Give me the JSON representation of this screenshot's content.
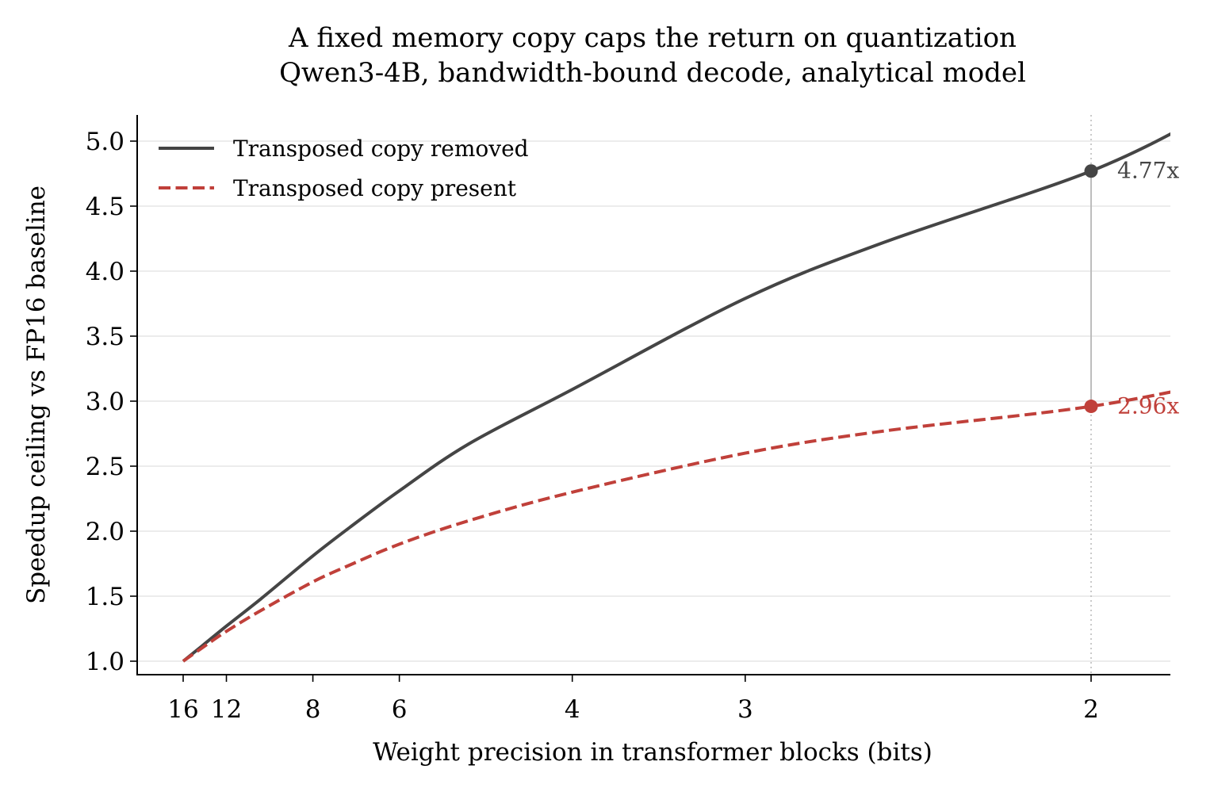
{
  "chart_data": {
    "type": "line",
    "title": "A fixed memory copy caps the return on quantization",
    "subtitle": "Qwen3-4B, bandwidth-bound decode, analytical model",
    "xlabel": "Weight precision in transformer blocks (bits)",
    "ylabel": "Speedup ceiling vs FP16 baseline",
    "x_scale": "reciprocal",
    "x_ticks": [
      16,
      12,
      8,
      6,
      4,
      3,
      2
    ],
    "y_ticks": [
      1.0,
      1.5,
      2.0,
      2.5,
      3.0,
      3.5,
      4.0,
      4.5,
      5.0
    ],
    "y_tick_labels": [
      "1.0",
      "1.5",
      "2.0",
      "2.5",
      "3.0",
      "3.5",
      "4.0",
      "4.5",
      "5.0"
    ],
    "ylim": [
      0.95,
      5.2
    ],
    "grid": "horizontal",
    "legend_position": "top-left",
    "reference_line_x": 2,
    "series": [
      {
        "name": "Transposed copy removed",
        "style": "solid",
        "color": "#454545",
        "x": [
          16,
          14,
          12,
          10,
          8,
          7,
          6,
          5,
          4,
          3,
          2.5,
          2,
          1.8
        ],
        "y": [
          1.0,
          1.115,
          1.27,
          1.48,
          1.81,
          2.03,
          2.31,
          2.67,
          3.09,
          3.79,
          4.22,
          4.77,
          5.2
        ],
        "end_value": 4.77,
        "end_label": "4.77x"
      },
      {
        "name": "Transposed copy present",
        "style": "dashed",
        "color": "#c0403a",
        "x": [
          16,
          14,
          12,
          10,
          8,
          7,
          6,
          5,
          4,
          3,
          2.5,
          2,
          1.75
        ],
        "y": [
          1.0,
          1.1,
          1.23,
          1.39,
          1.61,
          1.74,
          1.9,
          2.08,
          2.3,
          2.6,
          2.77,
          2.96,
          3.18
        ],
        "end_value": 2.96,
        "end_label": "2.96x"
      }
    ]
  }
}
